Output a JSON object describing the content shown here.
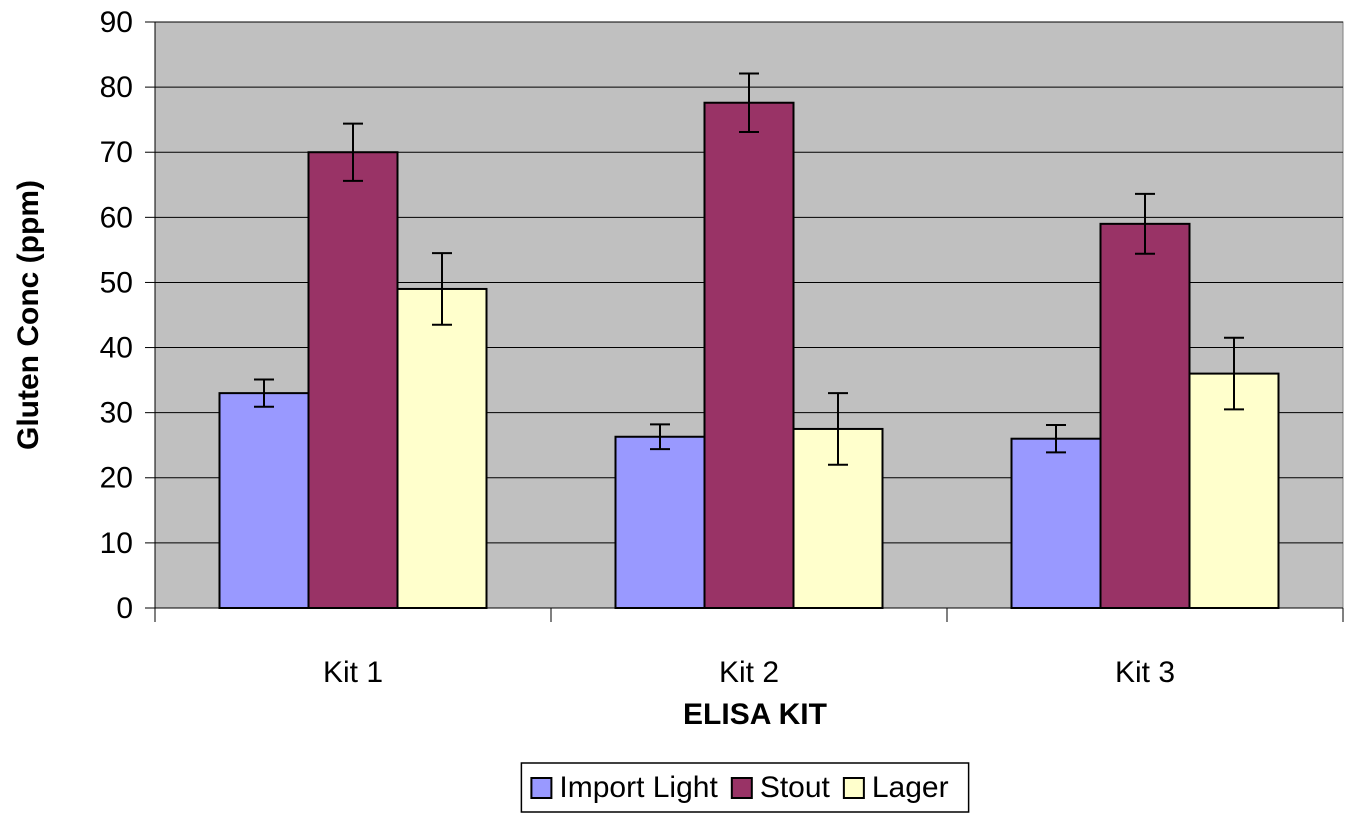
{
  "chart_data": {
    "type": "bar",
    "x_label": "ELISA KIT",
    "y_label": "Gluten Conc (ppm)",
    "categories": [
      "Kit 1",
      "Kit 2",
      "Kit 3"
    ],
    "series": [
      {
        "name": "Import Light",
        "color": "#9999ff",
        "values": [
          33,
          26.3,
          26
        ],
        "errors": [
          2.1,
          1.9,
          2.1
        ]
      },
      {
        "name": "Stout",
        "color": "#993366",
        "values": [
          70,
          77.6,
          59
        ],
        "errors": [
          4.4,
          4.5,
          4.6
        ]
      },
      {
        "name": "Lager",
        "color": "#ffffcc",
        "values": [
          49,
          27.5,
          36
        ],
        "errors": [
          5.5,
          5.5,
          5.5
        ]
      }
    ],
    "ylim": [
      0,
      90
    ],
    "yticks": [
      0,
      10,
      20,
      30,
      40,
      50,
      60,
      70,
      80,
      90
    ],
    "grid": true,
    "legend": "bottom",
    "plot_background": "#c0c0c0"
  }
}
